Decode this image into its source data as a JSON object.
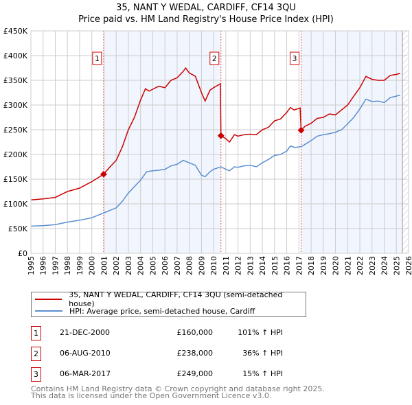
{
  "chart_data": {
    "type": "line",
    "title": "35, NANT Y WEDAL, CARDIFF, CF14 3QU",
    "subtitle": "Price paid vs. HM Land Registry's House Price Index (HPI)",
    "xlim": [
      1995,
      2026
    ],
    "ylim": [
      0,
      450000
    ],
    "y_ticks": [
      {
        "v": 0,
        "l": "£0"
      },
      {
        "v": 50000,
        "l": "£50K"
      },
      {
        "v": 100000,
        "l": "£100K"
      },
      {
        "v": 150000,
        "l": "£150K"
      },
      {
        "v": 200000,
        "l": "£200K"
      },
      {
        "v": 250000,
        "l": "£250K"
      },
      {
        "v": 300000,
        "l": "£300K"
      },
      {
        "v": 350000,
        "l": "£350K"
      },
      {
        "v": 400000,
        "l": "£400K"
      },
      {
        "v": 450000,
        "l": "£450K"
      }
    ],
    "x_ticks": [
      "1995",
      "1996",
      "1997",
      "1998",
      "1999",
      "2000",
      "2001",
      "2002",
      "2003",
      "2004",
      "2005",
      "2006",
      "2007",
      "2008",
      "2009",
      "2010",
      "2011",
      "2012",
      "2013",
      "2014",
      "2015",
      "2016",
      "2017",
      "2018",
      "2019",
      "2020",
      "2021",
      "2022",
      "2023",
      "2024",
      "2025",
      "2026"
    ],
    "grid": true,
    "series": [
      {
        "name": "35, NANT Y WEDAL, CARDIFF, CF14 3QU (semi-detached house)",
        "color": "#cc0000",
        "x": [
          1995,
          1996,
          1997,
          1998,
          1999,
          2000,
          2000.97,
          2001.5,
          2002,
          2002.5,
          2003,
          2003.5,
          2004,
          2004.4,
          2004.7,
          2005,
          2005.5,
          2006,
          2006.5,
          2007,
          2007.5,
          2007.7,
          2008,
          2008.5,
          2009,
          2009.3,
          2009.7,
          2010,
          2010.55,
          2010.6,
          2011,
          2011.3,
          2011.7,
          2012,
          2012.5,
          2013,
          2013.5,
          2014,
          2014.5,
          2015,
          2015.5,
          2016,
          2016.3,
          2016.6,
          2017.1,
          2017.18,
          2017.5,
          2018,
          2018.5,
          2019,
          2019.5,
          2020,
          2020.5,
          2021,
          2021.5,
          2022,
          2022.5,
          2023,
          2023.5,
          2024,
          2024.5,
          2025,
          2025.3
        ],
        "y": [
          108000,
          110000,
          113000,
          125000,
          132000,
          145000,
          160000,
          175000,
          188000,
          215000,
          250000,
          275000,
          310000,
          333000,
          328000,
          332000,
          338000,
          335000,
          350000,
          355000,
          368000,
          375000,
          365000,
          358000,
          325000,
          308000,
          330000,
          335000,
          343000,
          238000,
          232000,
          225000,
          240000,
          237000,
          240000,
          241000,
          240000,
          250000,
          255000,
          268000,
          272000,
          285000,
          295000,
          290000,
          294000,
          249000,
          257000,
          263000,
          273000,
          275000,
          282000,
          280000,
          290000,
          300000,
          318000,
          335000,
          358000,
          352000,
          350000,
          350000,
          360000,
          362000,
          364000
        ]
      },
      {
        "name": "HPI: Average price, semi-detached house, Cardiff",
        "color": "#5b8fd0",
        "x": [
          1995,
          1996,
          1997,
          1998,
          1999,
          2000,
          2001,
          2002,
          2002.5,
          2003,
          2003.5,
          2004,
          2004.5,
          2005,
          2005.5,
          2006,
          2006.5,
          2007,
          2007.5,
          2008,
          2008.5,
          2009,
          2009.3,
          2009.7,
          2010,
          2010.6,
          2011,
          2011.3,
          2011.7,
          2012,
          2012.5,
          2013,
          2013.5,
          2014,
          2014.5,
          2015,
          2015.5,
          2016,
          2016.3,
          2016.7,
          2017.2,
          2017.6,
          2018,
          2018.5,
          2019,
          2019.5,
          2020,
          2020.5,
          2021,
          2021.5,
          2022,
          2022.5,
          2023,
          2023.5,
          2024,
          2024.5,
          2025,
          2025.3
        ],
        "y": [
          55000,
          56000,
          58000,
          63000,
          67000,
          72000,
          82000,
          92000,
          105000,
          122000,
          135000,
          148000,
          165000,
          167000,
          168000,
          170000,
          177000,
          180000,
          188000,
          183000,
          178000,
          158000,
          155000,
          165000,
          170000,
          175000,
          170000,
          167000,
          175000,
          174000,
          177000,
          178000,
          175000,
          183000,
          190000,
          198000,
          200000,
          207000,
          217000,
          214000,
          216000,
          222000,
          228000,
          237000,
          240000,
          242000,
          245000,
          250000,
          262000,
          275000,
          292000,
          312000,
          307000,
          308000,
          305000,
          315000,
          318000,
          320000
        ]
      }
    ],
    "shaded_ranges": [
      [
        2000.97,
        2010.6
      ],
      [
        2017.18,
        2025.5
      ]
    ],
    "hatch_from": 2025.5,
    "sales": [
      {
        "label": "1",
        "x": 2000.97,
        "y": 160000,
        "date": "21-DEC-2000",
        "price": "£160,000",
        "pct": "101% ↑ HPI"
      },
      {
        "label": "2",
        "x": 2010.6,
        "y": 238000,
        "date": "06-AUG-2010",
        "price": "£238,000",
        "pct": "36% ↑ HPI"
      },
      {
        "label": "3",
        "x": 2017.18,
        "y": 249000,
        "date": "06-MAR-2017",
        "price": "£249,000",
        "pct": "15% ↑ HPI"
      }
    ]
  },
  "legend": {
    "property": "35, NANT Y WEDAL, CARDIFF, CF14 3QU (semi-detached house)",
    "hpi": "HPI: Average price, semi-detached house, Cardiff"
  },
  "footer": {
    "line1": "Contains HM Land Registry data © Crown copyright and database right 2025.",
    "line2": "This data is licensed under the Open Government Licence v3.0."
  }
}
